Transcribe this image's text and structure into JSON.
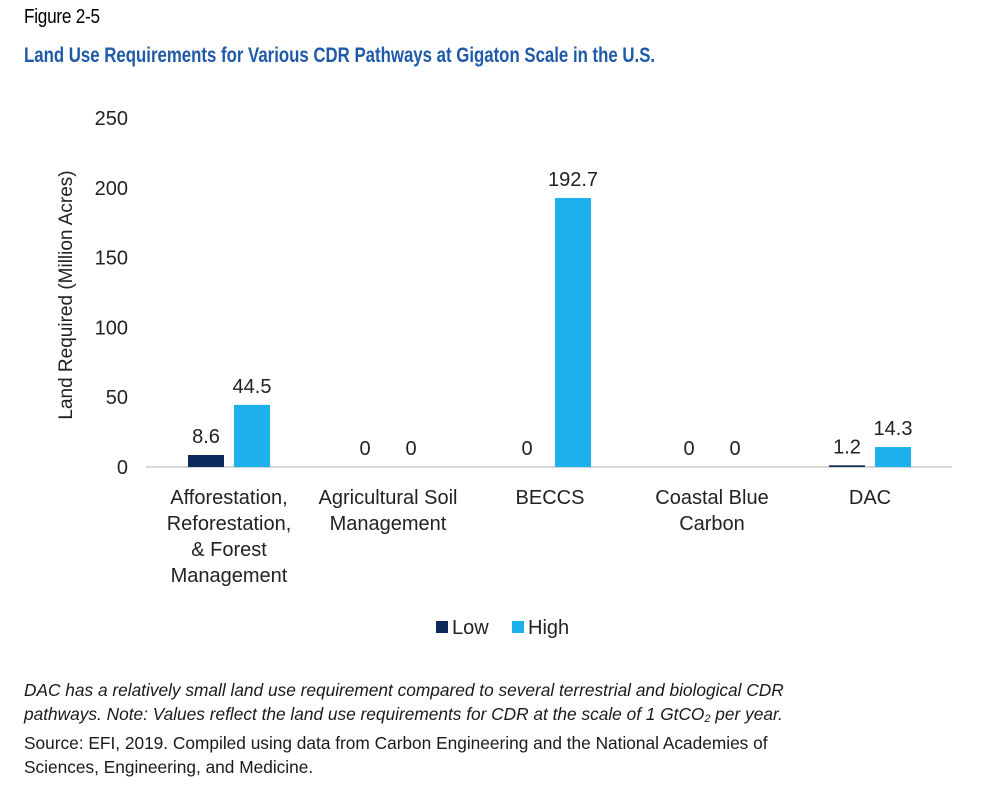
{
  "figure_label": "Figure 2-5",
  "title": "Land Use Requirements for Various CDR Pathways at Gigaton Scale in the U.S.",
  "colors": {
    "low": "#0c2a5c",
    "high": "#1cb1ec",
    "title": "#1f5aa8",
    "axis": "#bfbfbf"
  },
  "chart_data": {
    "type": "bar",
    "title": "Land Use Requirements for Various CDR Pathways at Gigaton Scale in the U.S.",
    "xlabel": "",
    "ylabel": "Land Required (Million Acres)",
    "ylim": [
      0,
      250
    ],
    "yticks": [
      "0",
      "50",
      "100",
      "150",
      "200",
      "250"
    ],
    "grid": false,
    "legend_position": "bottom-center",
    "categories": [
      [
        "Afforestation,",
        "Reforestation,",
        "& Forest",
        "Management"
      ],
      [
        "Agricultural Soil",
        "Management"
      ],
      [
        "BECCS"
      ],
      [
        "Coastal Blue",
        "Carbon"
      ],
      [
        "DAC"
      ]
    ],
    "series": [
      {
        "name": "Low",
        "values": [
          8.6,
          0,
          0,
          0,
          1.2
        ],
        "labels": [
          "8.6",
          "0",
          "0",
          "0",
          "1.2"
        ]
      },
      {
        "name": "High",
        "values": [
          44.5,
          0,
          192.7,
          0,
          14.3
        ],
        "labels": [
          "44.5",
          "0",
          "192.7",
          "0",
          "14.3"
        ]
      }
    ]
  },
  "caption": {
    "line1": "DAC has a relatively small land use requirement compared to several terrestrial and biological CDR",
    "line2_pre": "pathways.  Note: Values reflect the land use requirements for CDR at the scale of 1 GtCO",
    "line2_sub": "2",
    "line2_post": " per year.",
    "line3": "Source: EFI, 2019.  Compiled using data from Carbon Engineering and the National Academies of",
    "line4": "Sciences, Engineering, and Medicine."
  }
}
